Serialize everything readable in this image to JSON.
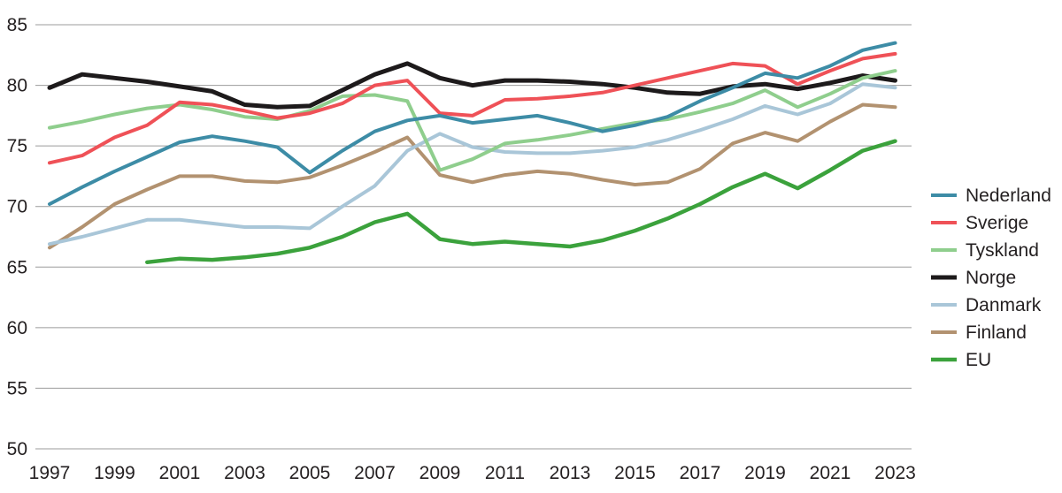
{
  "chart_data": {
    "type": "line",
    "title": "",
    "xlabel": "",
    "ylabel": "",
    "x": [
      1997,
      1998,
      1999,
      2000,
      2001,
      2002,
      2003,
      2004,
      2005,
      2006,
      2007,
      2008,
      2009,
      2010,
      2011,
      2012,
      2013,
      2014,
      2015,
      2016,
      2017,
      2018,
      2019,
      2020,
      2021,
      2022,
      2023
    ],
    "xticks": [
      1997,
      1999,
      2001,
      2003,
      2005,
      2007,
      2009,
      2011,
      2013,
      2015,
      2017,
      2019,
      2021,
      2023
    ],
    "ylim": [
      50,
      85
    ],
    "yticks": [
      50,
      55,
      60,
      65,
      70,
      75,
      80,
      85
    ],
    "grid": true,
    "legend_position": "right",
    "colors": {
      "text": "#231f20",
      "gridline": "#9b9b9b",
      "background": "#ffffff"
    },
    "series": [
      {
        "name": "Nederland",
        "color": "#3d8ca6",
        "stroke_width": 4,
        "values": [
          70.2,
          71.6,
          72.9,
          74.1,
          75.3,
          75.8,
          75.4,
          74.9,
          72.8,
          74.6,
          76.2,
          77.1,
          77.5,
          76.9,
          77.2,
          77.5,
          76.9,
          76.2,
          76.7,
          77.4,
          78.7,
          79.8,
          81.0,
          80.6,
          81.6,
          82.9,
          83.5
        ]
      },
      {
        "name": "Sverige",
        "color": "#ef5157",
        "stroke_width": 4,
        "values": [
          73.6,
          74.2,
          75.7,
          76.7,
          78.6,
          78.4,
          77.9,
          77.3,
          77.7,
          78.5,
          80.0,
          80.4,
          77.7,
          77.5,
          78.8,
          78.9,
          79.1,
          79.4,
          80.0,
          80.6,
          81.2,
          81.8,
          81.6,
          80.1,
          81.2,
          82.2,
          82.6
        ]
      },
      {
        "name": "Tyskland",
        "color": "#8fce8d",
        "stroke_width": 4,
        "values": [
          76.5,
          77.0,
          77.6,
          78.1,
          78.4,
          78.0,
          77.4,
          77.2,
          77.9,
          79.1,
          79.2,
          78.7,
          73.0,
          73.9,
          75.2,
          75.5,
          75.9,
          76.4,
          76.9,
          77.2,
          77.8,
          78.5,
          79.6,
          78.2,
          79.3,
          80.6,
          81.2
        ]
      },
      {
        "name": "Norge",
        "color": "#1d1a1b",
        "stroke_width": 5,
        "values": [
          79.8,
          80.9,
          80.6,
          80.3,
          79.9,
          79.5,
          78.4,
          78.2,
          78.3,
          79.6,
          80.9,
          81.8,
          80.6,
          80.0,
          80.4,
          80.4,
          80.3,
          80.1,
          79.8,
          79.4,
          79.3,
          79.9,
          80.1,
          79.7,
          80.2,
          80.8,
          80.4
        ]
      },
      {
        "name": "Danmark",
        "color": "#a9c6d8",
        "stroke_width": 4,
        "values": [
          66.9,
          67.5,
          68.2,
          68.9,
          68.9,
          68.6,
          68.3,
          68.3,
          68.2,
          70.0,
          71.7,
          74.6,
          76.0,
          74.9,
          74.5,
          74.4,
          74.4,
          74.6,
          74.9,
          75.5,
          76.3,
          77.2,
          78.3,
          77.6,
          78.5,
          80.1,
          79.8
        ]
      },
      {
        "name": "Finland",
        "color": "#b29270",
        "stroke_width": 4,
        "values": [
          66.6,
          68.3,
          70.2,
          71.4,
          72.5,
          72.5,
          72.1,
          72.0,
          72.4,
          73.4,
          74.5,
          75.7,
          72.6,
          72.0,
          72.6,
          72.9,
          72.7,
          72.2,
          71.8,
          72.0,
          73.1,
          75.2,
          76.1,
          75.4,
          77.0,
          78.4,
          78.2
        ]
      },
      {
        "name": "EU",
        "color": "#3ba23c",
        "stroke_width": 4.5,
        "values": [
          null,
          null,
          null,
          65.4,
          65.7,
          65.6,
          65.8,
          66.1,
          66.6,
          67.5,
          68.7,
          69.4,
          67.3,
          66.9,
          67.1,
          66.9,
          66.7,
          67.2,
          68.0,
          69.0,
          70.2,
          71.6,
          72.7,
          71.5,
          73.0,
          74.6,
          75.4
        ]
      }
    ]
  }
}
